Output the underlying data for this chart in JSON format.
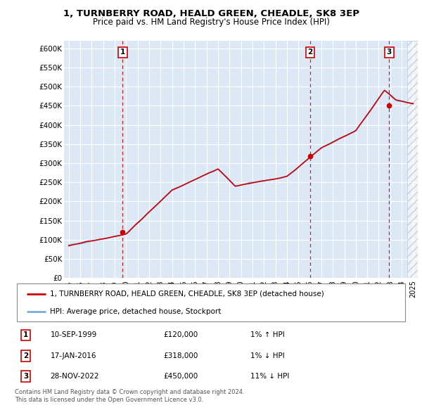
{
  "title": "1, TURNBERRY ROAD, HEALD GREEN, CHEADLE, SK8 3EP",
  "subtitle": "Price paid vs. HM Land Registry's House Price Index (HPI)",
  "ylim": [
    0,
    620000
  ],
  "yticks": [
    0,
    50000,
    100000,
    150000,
    200000,
    250000,
    300000,
    350000,
    400000,
    450000,
    500000,
    550000,
    600000
  ],
  "ytick_labels": [
    "£0",
    "£50K",
    "£100K",
    "£150K",
    "£200K",
    "£250K",
    "£300K",
    "£350K",
    "£400K",
    "£450K",
    "£500K",
    "£550K",
    "£600K"
  ],
  "transactions": [
    {
      "num": 1,
      "date_str": "10-SEP-1999",
      "date_x": 1999.7,
      "price": 120000,
      "hpi_pct": "1%",
      "hpi_dir": "↑"
    },
    {
      "num": 2,
      "date_str": "17-JAN-2016",
      "date_x": 2016.04,
      "price": 318000,
      "hpi_pct": "1%",
      "hpi_dir": "↓"
    },
    {
      "num": 3,
      "date_str": "28-NOV-2022",
      "date_x": 2022.91,
      "price": 450000,
      "hpi_pct": "11%",
      "hpi_dir": "↓"
    }
  ],
  "legend_line1": "1, TURNBERRY ROAD, HEALD GREEN, CHEADLE, SK8 3EP (detached house)",
  "legend_line2": "HPI: Average price, detached house, Stockport",
  "footer1": "Contains HM Land Registry data © Crown copyright and database right 2024.",
  "footer2": "This data is licensed under the Open Government Licence v3.0.",
  "line_color_red": "#cc0000",
  "line_color_blue": "#7aaadd",
  "bg_color": "#dce8f5",
  "grid_color": "#ffffff",
  "vline_color": "#cc0000",
  "marker_box_color": "#cc0000",
  "xlim_left": 1994.6,
  "xlim_right": 2025.4
}
